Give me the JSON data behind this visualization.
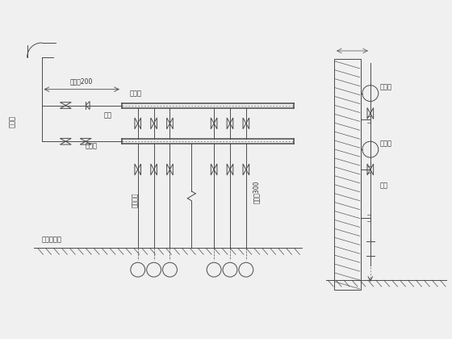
{
  "bg_color": "#f0f0f0",
  "line_color": "#4a4a4a",
  "text_color": "#333333",
  "fig_width": 5.6,
  "fig_height": 4.2,
  "dpi": 100,
  "labels": {
    "cold_pipe": "冷热管",
    "dn200": "不小于200",
    "dn300": "不小于300",
    "fensh": "分水器",
    "jish": "集水器",
    "zijia": "支架",
    "floor": "建筑完成面",
    "drain": "补水排口"
  }
}
